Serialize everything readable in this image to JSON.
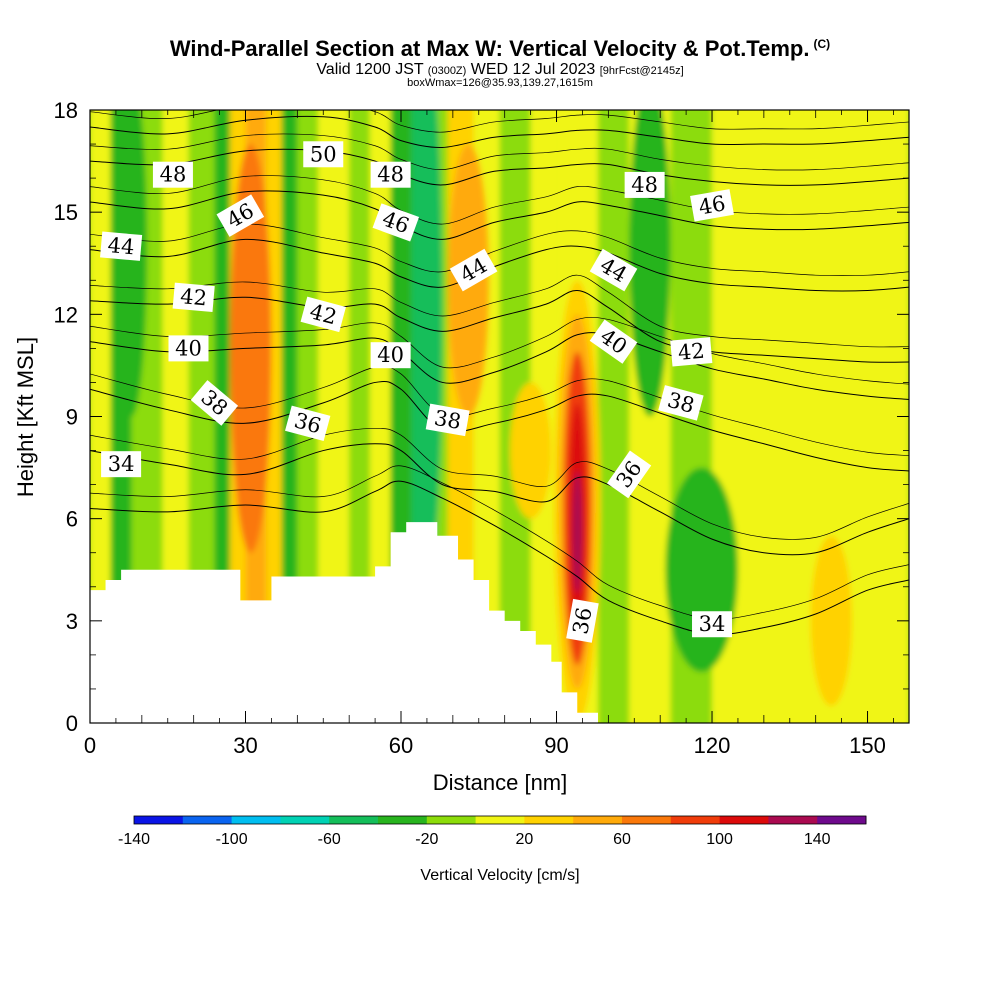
{
  "header": {
    "title": "Wind-Parallel Section at Max W: Vertical Velocity & Pot.Temp.",
    "copyright": "(C)",
    "valid_prefix": "Valid 1200 JST",
    "valid_utc": "(0300Z)",
    "valid_date": "WED 12 Jul 2023",
    "forecast": "[9hrFcst@2145z]",
    "boxinfo": "boxWmax=126@35.93,139.27,1615m"
  },
  "colorbar": {
    "title": "Vertical Velocity [cm/s]",
    "tick_labels": [
      "-140",
      "-100",
      "-60",
      "-20",
      "20",
      "60",
      "100",
      "140"
    ],
    "colors": [
      "#0a14e6",
      "#0a64f0",
      "#00bef0",
      "#00d2b4",
      "#14be5a",
      "#28b41e",
      "#8cdc0a",
      "#f0f514",
      "#ffd200",
      "#ffaa0a",
      "#fa780a",
      "#f03c0a",
      "#dc0a0a",
      "#aa0a50",
      "#6e0a8c"
    ]
  },
  "chart_data": {
    "type": "contour",
    "title": "Wind-Parallel Section at Max W: Vertical Velocity & Pot.Temp.",
    "xlabel": "Distance [nm]",
    "ylabel": "Height [Kft MSL]",
    "xlim": [
      0,
      158
    ],
    "ylim": [
      0,
      18
    ],
    "x_ticks": [
      0,
      30,
      60,
      90,
      120,
      150
    ],
    "y_ticks": [
      0,
      3,
      6,
      9,
      12,
      15,
      18
    ],
    "color_field": "Vertical Velocity [cm/s]",
    "line_field": "Potential Temperature",
    "fill_bands": [
      {
        "x0": 0,
        "x1": 4,
        "color": "#f0f514"
      },
      {
        "x0": 4,
        "x1": 8,
        "color": "#28b41e"
      },
      {
        "x0": 8,
        "x1": 14,
        "color": "#8cdc0a"
      },
      {
        "x0": 14,
        "x1": 19,
        "color": "#f0f514"
      },
      {
        "x0": 19,
        "x1": 24,
        "color": "#8cdc0a"
      },
      {
        "x0": 24,
        "x1": 27,
        "color": "#28b41e"
      },
      {
        "x0": 27,
        "x1": 30,
        "color": "#ffd200"
      },
      {
        "x0": 30,
        "x1": 34,
        "color": "#ffaa0a"
      },
      {
        "x0": 34,
        "x1": 37,
        "color": "#ffd200"
      },
      {
        "x0": 37,
        "x1": 40,
        "color": "#28b41e"
      },
      {
        "x0": 40,
        "x1": 44,
        "color": "#8cdc0a"
      },
      {
        "x0": 44,
        "x1": 50,
        "color": "#f0f514"
      },
      {
        "x0": 50,
        "x1": 54,
        "color": "#8cdc0a"
      },
      {
        "x0": 54,
        "x1": 58,
        "color": "#f0f514"
      },
      {
        "x0": 58,
        "x1": 62,
        "color": "#28b41e"
      },
      {
        "x0": 62,
        "x1": 65,
        "color": "#14be5a"
      },
      {
        "x0": 65,
        "x1": 69,
        "color": "#8cdc0a"
      },
      {
        "x0": 69,
        "x1": 74,
        "color": "#ffd200"
      },
      {
        "x0": 74,
        "x1": 79,
        "color": "#f0f514"
      },
      {
        "x0": 79,
        "x1": 85,
        "color": "#8cdc0a"
      },
      {
        "x0": 85,
        "x1": 90,
        "color": "#f0f514"
      },
      {
        "x0": 90,
        "x1": 98,
        "color": "#f0f514"
      },
      {
        "x0": 98,
        "x1": 104,
        "color": "#8cdc0a"
      },
      {
        "x0": 104,
        "x1": 112,
        "color": "#f0f514"
      },
      {
        "x0": 112,
        "x1": 120,
        "color": "#8cdc0a"
      },
      {
        "x0": 120,
        "x1": 158,
        "color": "#f0f514"
      }
    ],
    "blobs": [
      {
        "x": 8,
        "y": 14,
        "rx": 3,
        "ry": 5,
        "color": "#28b41e"
      },
      {
        "x": 31,
        "y": 11,
        "rx": 4,
        "ry": 6,
        "color": "#fa780a"
      },
      {
        "x": 65,
        "y": 12,
        "rx": 3,
        "ry": 8,
        "color": "#14be5a"
      },
      {
        "x": 73,
        "y": 13,
        "rx": 4,
        "ry": 4,
        "color": "#ffaa0a"
      },
      {
        "x": 108,
        "y": 14,
        "rx": 4,
        "ry": 5,
        "color": "#28b41e"
      },
      {
        "x": 118,
        "y": 4.5,
        "rx": 7,
        "ry": 3,
        "color": "#28b41e"
      },
      {
        "x": 143,
        "y": 3,
        "rx": 4,
        "ry": 2.5,
        "color": "#ffd200"
      },
      {
        "x": 85,
        "y": 8,
        "rx": 4,
        "ry": 2,
        "color": "#ffd200"
      },
      {
        "x": 94,
        "y": 6.5,
        "rx": 4.5,
        "ry": 6.5,
        "color": "#ffd200"
      },
      {
        "x": 94,
        "y": 6.5,
        "rx": 3.5,
        "ry": 5.5,
        "color": "#ffaa0a"
      },
      {
        "x": 94,
        "y": 6.3,
        "rx": 2.6,
        "ry": 4.6,
        "color": "#f03c0a"
      },
      {
        "x": 94,
        "y": 6,
        "rx": 1.6,
        "ry": 3.4,
        "color": "#dc0a0a"
      },
      {
        "x": 94,
        "y": 5.6,
        "rx": 0.9,
        "ry": 1.8,
        "color": "#aa0a50"
      }
    ],
    "terrain": [
      [
        0,
        0
      ],
      [
        0,
        3.9
      ],
      [
        3,
        3.9
      ],
      [
        3,
        4.2
      ],
      [
        6,
        4.2
      ],
      [
        6,
        4.5
      ],
      [
        29,
        4.5
      ],
      [
        29,
        3.6
      ],
      [
        35,
        3.6
      ],
      [
        35,
        4.3
      ],
      [
        55,
        4.3
      ],
      [
        55,
        4.6
      ],
      [
        58,
        4.6
      ],
      [
        58,
        5.6
      ],
      [
        61,
        5.6
      ],
      [
        61,
        5.9
      ],
      [
        67,
        5.9
      ],
      [
        67,
        5.5
      ],
      [
        71,
        5.5
      ],
      [
        71,
        4.8
      ],
      [
        74,
        4.8
      ],
      [
        74,
        4.2
      ],
      [
        77,
        4.2
      ],
      [
        77,
        3.3
      ],
      [
        80,
        3.3
      ],
      [
        80,
        3.0
      ],
      [
        83,
        3.0
      ],
      [
        83,
        2.7
      ],
      [
        86,
        2.7
      ],
      [
        86,
        2.3
      ],
      [
        89,
        2.3
      ],
      [
        89,
        1.8
      ],
      [
        91,
        1.8
      ],
      [
        91,
        0.9
      ],
      [
        94,
        0.9
      ],
      [
        94,
        0.3
      ],
      [
        98,
        0.3
      ],
      [
        98,
        0
      ]
    ],
    "theta_contours": [
      {
        "value": 34,
        "x": [
          0,
          15,
          30,
          45,
          55,
          60,
          68,
          78,
          88,
          94,
          100,
          110,
          120,
          130,
          140,
          150,
          158
        ],
        "y": [
          6.3,
          6.2,
          6.4,
          6.2,
          6.8,
          7.1,
          6.6,
          5.8,
          4.9,
          4.3,
          3.6,
          3.0,
          2.6,
          2.8,
          3.2,
          3.9,
          4.2
        ]
      },
      {
        "value": 36,
        "x": [
          0,
          15,
          30,
          45,
          55,
          60,
          68,
          78,
          88,
          94,
          100,
          110,
          120,
          130,
          140,
          150,
          158
        ],
        "y": [
          8.0,
          7.6,
          7.3,
          8.0,
          8.2,
          8.0,
          7.0,
          6.8,
          6.5,
          7.2,
          7.0,
          6.2,
          5.4,
          5.0,
          5.0,
          5.6,
          6.0
        ]
      },
      {
        "value": 38,
        "x": [
          0,
          15,
          30,
          45,
          55,
          60,
          68,
          78,
          88,
          94,
          100,
          110,
          120,
          130,
          140,
          150,
          158
        ],
        "y": [
          9.8,
          9.2,
          8.8,
          9.4,
          10.0,
          9.8,
          8.6,
          8.8,
          9.2,
          9.6,
          9.6,
          9.1,
          8.6,
          8.2,
          7.8,
          7.5,
          7.4
        ]
      },
      {
        "value": 40,
        "x": [
          0,
          15,
          30,
          45,
          55,
          60,
          68,
          78,
          88,
          94,
          100,
          110,
          120,
          130,
          140,
          150,
          158
        ],
        "y": [
          11.2,
          10.9,
          11.0,
          11.1,
          11.3,
          10.9,
          10.0,
          10.3,
          10.9,
          11.4,
          11.4,
          10.9,
          10.4,
          10.1,
          9.8,
          9.6,
          9.5
        ]
      },
      {
        "value": 42,
        "x": [
          0,
          15,
          30,
          45,
          55,
          60,
          68,
          78,
          88,
          94,
          100,
          110,
          120,
          130,
          140,
          150,
          158
        ],
        "y": [
          12.4,
          12.3,
          12.5,
          12.2,
          12.3,
          11.9,
          11.5,
          11.9,
          12.3,
          12.7,
          12.2,
          11.2,
          10.9,
          10.8,
          10.7,
          10.6,
          10.6
        ]
      },
      {
        "value": 44,
        "x": [
          0,
          15,
          30,
          45,
          55,
          60,
          68,
          78,
          88,
          94,
          100,
          110,
          120,
          130,
          140,
          150,
          158
        ],
        "y": [
          13.9,
          13.7,
          14.2,
          13.8,
          13.5,
          13.1,
          12.8,
          13.4,
          13.9,
          14.0,
          13.8,
          13.2,
          12.9,
          12.8,
          12.7,
          12.7,
          12.8
        ]
      },
      {
        "value": 46,
        "x": [
          0,
          15,
          30,
          45,
          55,
          60,
          68,
          78,
          88,
          94,
          100,
          110,
          120,
          130,
          140,
          150,
          158
        ],
        "y": [
          15.3,
          15.1,
          15.6,
          15.5,
          15.1,
          14.6,
          14.2,
          14.7,
          15.0,
          15.3,
          15.2,
          14.9,
          14.6,
          14.5,
          14.5,
          14.6,
          14.7
        ]
      },
      {
        "value": 48,
        "x": [
          0,
          15,
          30,
          45,
          55,
          60,
          68,
          78,
          88,
          94,
          100,
          110,
          120,
          130,
          140,
          150,
          158
        ],
        "y": [
          16.5,
          16.4,
          16.8,
          16.8,
          16.5,
          16.1,
          15.8,
          16.2,
          16.3,
          16.4,
          16.4,
          16.1,
          15.9,
          15.8,
          15.8,
          15.9,
          16.0
        ]
      },
      {
        "value": 50,
        "x": [
          0,
          15,
          30,
          45,
          55,
          60,
          68,
          78,
          88,
          94,
          100,
          110,
          120,
          130,
          140,
          150,
          158
        ],
        "y": [
          17.5,
          17.3,
          17.7,
          17.8,
          17.5,
          17.1,
          16.9,
          17.2,
          17.3,
          17.4,
          17.4,
          17.2,
          17.0,
          17.0,
          17.0,
          17.1,
          17.2
        ]
      }
    ],
    "contour_labels": [
      {
        "text": "48",
        "x": 16,
        "y": 16.1,
        "rot": 0
      },
      {
        "text": "50",
        "x": 45,
        "y": 16.7,
        "rot": 0
      },
      {
        "text": "48",
        "x": 58,
        "y": 16.1,
        "rot": 0
      },
      {
        "text": "48",
        "x": 107,
        "y": 15.8,
        "rot": 0
      },
      {
        "text": "46",
        "x": 29,
        "y": 14.9,
        "rot": -30
      },
      {
        "text": "46",
        "x": 59,
        "y": 14.7,
        "rot": 20
      },
      {
        "text": "46",
        "x": 120,
        "y": 15.2,
        "rot": -10
      },
      {
        "text": "44",
        "x": 6,
        "y": 14.0,
        "rot": 5
      },
      {
        "text": "44",
        "x": 74,
        "y": 13.3,
        "rot": -30
      },
      {
        "text": "44",
        "x": 101,
        "y": 13.3,
        "rot": 30
      },
      {
        "text": "42",
        "x": 20,
        "y": 12.5,
        "rot": 5
      },
      {
        "text": "42",
        "x": 45,
        "y": 12.0,
        "rot": 15
      },
      {
        "text": "42",
        "x": 116,
        "y": 10.9,
        "rot": -5
      },
      {
        "text": "40",
        "x": 19,
        "y": 11.0,
        "rot": 0
      },
      {
        "text": "40",
        "x": 58,
        "y": 10.8,
        "rot": 0
      },
      {
        "text": "40",
        "x": 101,
        "y": 11.2,
        "rot": 35
      },
      {
        "text": "38",
        "x": 24,
        "y": 9.4,
        "rot": 40
      },
      {
        "text": "38",
        "x": 69,
        "y": 8.9,
        "rot": 10
      },
      {
        "text": "38",
        "x": 114,
        "y": 9.4,
        "rot": 15
      },
      {
        "text": "36",
        "x": 42,
        "y": 8.8,
        "rot": 15
      },
      {
        "text": "36",
        "x": 104,
        "y": 7.3,
        "rot": -55
      },
      {
        "text": "36",
        "x": 95,
        "y": 3.0,
        "rot": -80
      },
      {
        "text": "34",
        "x": 6,
        "y": 7.6,
        "rot": 0
      },
      {
        "text": "34",
        "x": 120,
        "y": 2.9,
        "rot": 0
      }
    ]
  }
}
